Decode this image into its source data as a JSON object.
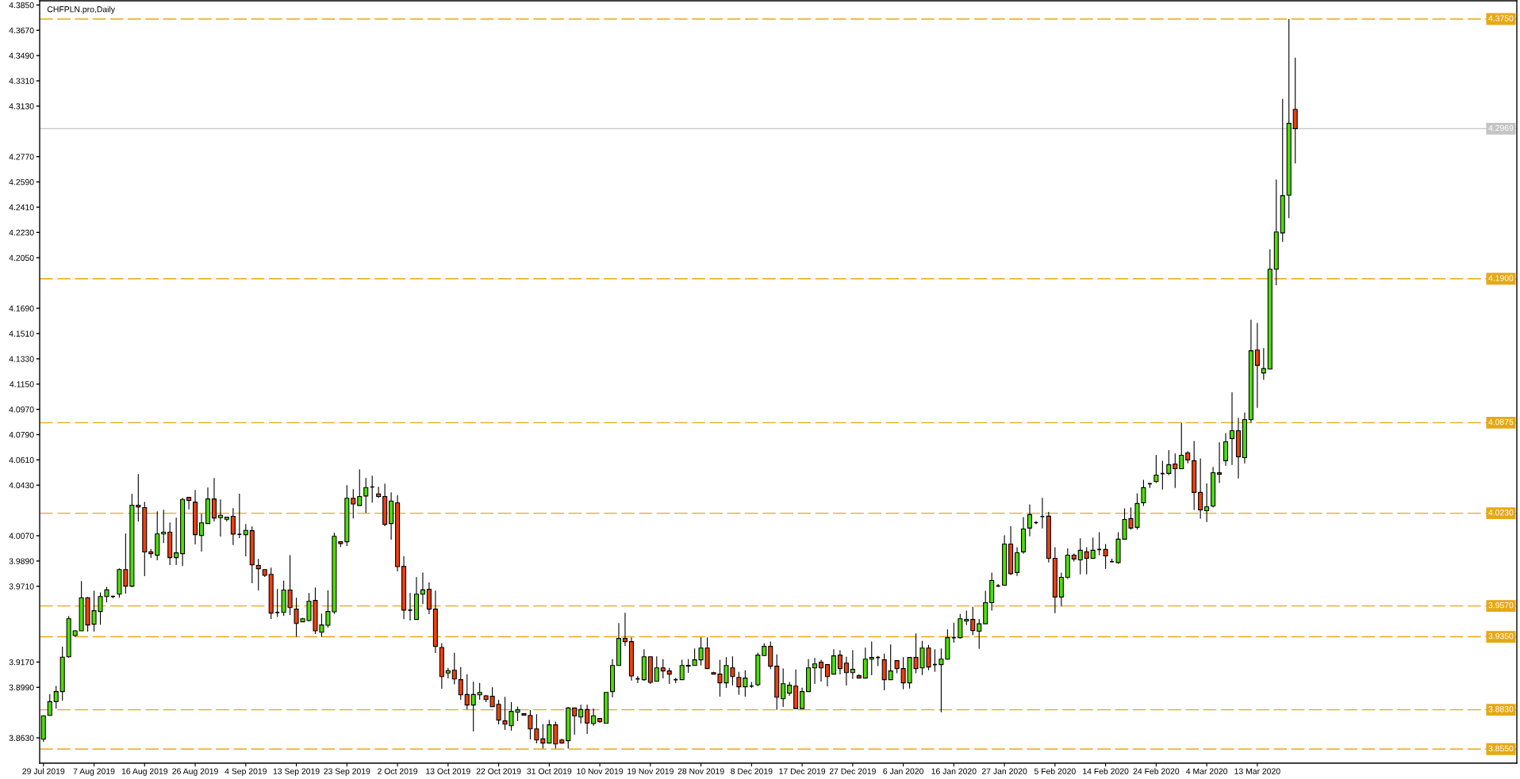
{
  "chart_data": {
    "type": "candlestick",
    "title": "CHFPLN.pro,Daily",
    "categories": [
      "29 Jul 2019",
      null,
      null,
      null,
      null,
      null,
      null,
      null,
      "7 Aug 2019",
      null,
      null,
      null,
      null,
      null,
      null,
      null,
      "16 Aug 2019",
      null,
      null,
      null,
      null,
      null,
      null,
      null,
      "26 Aug 2019",
      null,
      null,
      null,
      null,
      null,
      null,
      null,
      "4 Sep 2019",
      null,
      null,
      null,
      null,
      null,
      null,
      null,
      "13 Sep 2019",
      null,
      null,
      null,
      null,
      null,
      null,
      null,
      "23 Sep 2019",
      null,
      null,
      null,
      null,
      null,
      null,
      null,
      "2 Oct 2019",
      null,
      null,
      null,
      null,
      null,
      null,
      null,
      "13 Oct 2019",
      null,
      null,
      null,
      null,
      null,
      null,
      null,
      "22 Oct 2019",
      null,
      null,
      null,
      null,
      null,
      null,
      null,
      "31 Oct 2019",
      null,
      null,
      null,
      null,
      null,
      null,
      null,
      "10 Nov 2019",
      null,
      null,
      null,
      null,
      null,
      null,
      null,
      "19 Nov 2019",
      null,
      null,
      null,
      null,
      null,
      null,
      null,
      "28 Nov 2019",
      null,
      null,
      null,
      null,
      null,
      null,
      null,
      "8 Dec 2019",
      null,
      null,
      null,
      null,
      null,
      null,
      null,
      "17 Dec 2019",
      null,
      null,
      null,
      null,
      null,
      null,
      null,
      "27 Dec 2019",
      null,
      null,
      null,
      null,
      null,
      null,
      null,
      "6 Jan 2020",
      null,
      null,
      null,
      null,
      null,
      null,
      null,
      "16 Jan 2020",
      null,
      null,
      null,
      null,
      null,
      null,
      null,
      "27 Jan 2020",
      null,
      null,
      null,
      null,
      null,
      null,
      null,
      "5 Feb 2020",
      null,
      null,
      null,
      null,
      null,
      null,
      null,
      "14 Feb 2020",
      null,
      null,
      null,
      null,
      null,
      null,
      null,
      "24 Feb 2020",
      null,
      null,
      null,
      null,
      null,
      null,
      null,
      "4 Mar 2020",
      null,
      null,
      null,
      null,
      null,
      null,
      null,
      "13 Mar 2020",
      null,
      null,
      null,
      null,
      null,
      null
    ],
    "ohlc": [
      [
        3.8621,
        3.879,
        3.8602,
        3.8787
      ],
      [
        3.879,
        3.8941,
        3.8787,
        3.8888
      ],
      [
        3.8888,
        3.9001,
        3.8838,
        3.896
      ],
      [
        3.896,
        3.928,
        3.8894,
        3.9205
      ],
      [
        3.9208,
        3.9498,
        3.9201,
        3.9479
      ],
      [
        3.9359,
        3.9396,
        3.9351,
        3.9393
      ],
      [
        3.9393,
        3.9747,
        3.9393,
        3.9628
      ],
      [
        3.9628,
        3.9634,
        3.9387,
        3.9434
      ],
      [
        3.944,
        3.9679,
        3.9387,
        3.9536
      ],
      [
        3.953,
        3.9666,
        3.9436,
        3.9637
      ],
      [
        3.9637,
        3.9705,
        3.9596,
        3.9684
      ],
      [
        3.9637,
        3.9643,
        3.9626,
        3.9637
      ],
      [
        3.9654,
        3.9837,
        3.963,
        3.9829
      ],
      [
        3.9829,
        4.0085,
        3.9658,
        3.9711
      ],
      [
        3.9711,
        4.0368,
        3.9703,
        4.0287
      ],
      [
        4.0287,
        4.0509,
        4.017,
        4.0275
      ],
      [
        4.027,
        4.0311,
        3.9782,
        3.9954
      ],
      [
        3.9955,
        3.9976,
        3.9912,
        3.9942
      ],
      [
        3.9931,
        4.0243,
        3.9895,
        4.0083
      ],
      [
        4.0083,
        4.0255,
        4.0018,
        4.0095
      ],
      [
        4.0095,
        4.0164,
        3.9861,
        3.9914
      ],
      [
        3.9914,
        4.0198,
        3.9861,
        3.9948
      ],
      [
        3.9942,
        4.0339,
        3.9854,
        4.0328
      ],
      [
        4.0343,
        4.0343,
        4.0257,
        4.0321
      ],
      [
        4.0309,
        4.0396,
        4.0008,
        4.0078
      ],
      [
        4.0072,
        4.0226,
        3.9957,
        4.0162
      ],
      [
        4.0157,
        4.0413,
        4.0157,
        4.0332
      ],
      [
        4.0332,
        4.048,
        4.0172,
        4.0196
      ],
      [
        4.0198,
        4.0328,
        4.0065,
        4.0215
      ],
      [
        4.0187,
        4.0202,
        4.0172,
        4.0202
      ],
      [
        4.0208,
        4.0266,
        4.0003,
        4.0082
      ],
      [
        4.008,
        4.0369,
        4.0053,
        4.008
      ],
      [
        4.0078,
        4.0153,
        3.9923,
        4.0108
      ],
      [
        4.0106,
        4.0136,
        3.9731,
        3.9863
      ],
      [
        3.9858,
        3.9905,
        3.9681,
        3.9835
      ],
      [
        3.9829,
        3.9829,
        3.9777,
        3.9788
      ],
      [
        3.9795,
        3.9843,
        3.9477,
        3.9519
      ],
      [
        3.9523,
        3.969,
        3.9491,
        3.9523
      ],
      [
        3.9524,
        3.975,
        3.95,
        3.9683
      ],
      [
        3.9683,
        3.9931,
        3.9506,
        3.9558
      ],
      [
        3.9547,
        3.9628,
        3.9351,
        3.9445
      ],
      [
        3.9457,
        3.9485,
        3.9457,
        3.9479
      ],
      [
        3.9466,
        3.9662,
        3.9459,
        3.9603
      ],
      [
        3.9609,
        3.9701,
        3.937,
        3.9393
      ],
      [
        3.9383,
        3.9515,
        3.9349,
        3.9434
      ],
      [
        3.9432,
        3.9681,
        3.9415,
        3.953
      ],
      [
        3.9528,
        4.0091,
        3.9513,
        4.0066
      ],
      [
        4.0027,
        4.0027,
        3.9989,
        4.0014
      ],
      [
        4.0027,
        4.043,
        3.9997,
        4.0337
      ],
      [
        4.0337,
        4.0401,
        4.0193,
        4.0296
      ],
      [
        4.0285,
        4.0543,
        4.0285,
        4.0349
      ],
      [
        4.0353,
        4.048,
        4.0232,
        4.0413
      ],
      [
        4.0417,
        4.0497,
        4.0305,
        4.0417
      ],
      [
        4.0368,
        4.0418,
        4.0339,
        4.0349
      ],
      [
        4.0349,
        4.0441,
        4.0138,
        4.0151
      ],
      [
        4.0157,
        4.0379,
        4.0042,
        4.0317
      ],
      [
        4.0304,
        4.0358,
        3.9816,
        3.985
      ],
      [
        3.9852,
        3.9925,
        3.9476,
        3.954
      ],
      [
        3.954,
        3.9662,
        3.9466,
        3.954
      ],
      [
        3.9474,
        3.9775,
        3.9474,
        3.9654
      ],
      [
        3.9654,
        3.9807,
        3.9583,
        3.9684
      ],
      [
        3.9688,
        3.9739,
        3.9511,
        3.9547
      ],
      [
        3.9547,
        3.9679,
        3.9235,
        3.9282
      ],
      [
        3.9274,
        3.9304,
        3.8981,
        3.9067
      ],
      [
        3.9092,
        3.9129,
        3.9054,
        3.9109
      ],
      [
        3.9112,
        3.9236,
        3.9011,
        3.905
      ],
      [
        3.9045,
        3.9135,
        3.8901,
        3.8937
      ],
      [
        3.8939,
        3.9084,
        3.8832,
        3.8864
      ],
      [
        3.8864,
        3.903,
        3.8676,
        3.8939
      ],
      [
        3.8937,
        3.9022,
        3.8901,
        3.8954
      ],
      [
        3.893,
        3.8937,
        3.8885,
        3.8903
      ],
      [
        3.8926,
        3.899,
        3.8853,
        3.8853
      ],
      [
        3.8869,
        3.89,
        3.8727,
        3.8757
      ],
      [
        3.8751,
        3.8922,
        3.8687,
        3.8728
      ],
      [
        3.8717,
        3.8885,
        3.8681,
        3.8819
      ],
      [
        3.8813,
        3.8853,
        3.8749,
        3.883
      ],
      [
        3.8802,
        3.8802,
        3.8792,
        3.8792
      ],
      [
        3.879,
        3.8828,
        3.8619,
        3.8694
      ],
      [
        3.8694,
        3.8798,
        3.8591,
        3.8615
      ],
      [
        3.8623,
        3.8728,
        3.8555,
        3.8593
      ],
      [
        3.8593,
        3.8758,
        3.8593,
        3.8723
      ],
      [
        3.8723,
        3.8747,
        3.8555,
        3.8587
      ],
      [
        3.8615,
        3.8623,
        3.8593,
        3.8593
      ],
      [
        3.861,
        3.8849,
        3.8555,
        3.8843
      ],
      [
        3.8843,
        3.8843,
        3.8653,
        3.8787
      ],
      [
        3.8779,
        3.8866,
        3.8732,
        3.8832
      ],
      [
        3.8832,
        3.8866,
        3.8659,
        3.8736
      ],
      [
        3.8732,
        3.8839,
        3.8717,
        3.8787
      ],
      [
        3.8768,
        3.8768,
        3.8738,
        3.8745
      ],
      [
        3.8734,
        3.8954,
        3.8734,
        3.8954
      ],
      [
        3.896,
        3.9191,
        3.8918,
        3.9146
      ],
      [
        3.9146,
        3.9447,
        3.9146,
        3.9338
      ],
      [
        3.9338,
        3.9521,
        3.9285,
        3.9316
      ],
      [
        3.9316,
        3.9344,
        3.9039,
        3.9071
      ],
      [
        3.905,
        3.9069,
        3.902,
        3.905
      ],
      [
        3.9045,
        3.9261,
        3.9035,
        3.9208
      ],
      [
        3.9208,
        3.9208,
        3.9014,
        3.9026
      ],
      [
        3.9033,
        3.921,
        3.9033,
        3.9129
      ],
      [
        3.9129,
        3.9191,
        3.9054,
        3.9107
      ],
      [
        3.9107,
        3.9129,
        3.9014,
        3.9084
      ],
      [
        3.9045,
        3.9056,
        3.902,
        3.9045
      ],
      [
        3.9045,
        3.9186,
        3.9045,
        3.9146
      ],
      [
        3.9141,
        3.9191,
        3.9094,
        3.9146
      ],
      [
        3.9146,
        3.9267,
        3.9146,
        3.9186
      ],
      [
        3.9186,
        3.9346,
        3.9146,
        3.927
      ],
      [
        3.927,
        3.9346,
        3.9124,
        3.9124
      ],
      [
        3.9095,
        3.9101,
        3.9084,
        3.9084
      ],
      [
        3.9084,
        3.9186,
        3.8924,
        3.9022
      ],
      [
        3.9022,
        3.9205,
        3.8986,
        3.9146
      ],
      [
        3.9129,
        3.921,
        3.9003,
        3.9067
      ],
      [
        3.9061,
        3.9101,
        3.8937,
        3.8994
      ],
      [
        3.8994,
        3.9112,
        3.8924,
        3.9056
      ],
      [
        3.8999,
        3.9028,
        3.8986,
        3.8999
      ],
      [
        3.9009,
        3.9237,
        3.8997,
        3.922
      ],
      [
        3.9216,
        3.9304,
        3.9212,
        3.9282
      ],
      [
        3.9282,
        3.9317,
        3.912,
        3.9141
      ],
      [
        3.9141,
        3.9225,
        3.883,
        3.892
      ],
      [
        3.8909,
        3.9124,
        3.8851,
        3.9016
      ],
      [
        3.8949,
        3.9028,
        3.893,
        3.9005
      ],
      [
        3.8999,
        3.9118,
        3.8836,
        3.8839
      ],
      [
        3.8839,
        3.8988,
        3.8836,
        3.896
      ],
      [
        3.896,
        3.9191,
        3.896,
        3.9129
      ],
      [
        3.9129,
        3.9199,
        3.9014,
        3.9157
      ],
      [
        3.9169,
        3.9186,
        3.9031,
        3.9129
      ],
      [
        3.9152,
        3.9152,
        3.8997,
        3.9067
      ],
      [
        3.9084,
        3.9261,
        3.9084,
        3.9214
      ],
      [
        3.922,
        3.9255,
        3.9082,
        3.9124
      ],
      [
        3.9163,
        3.9208,
        3.9003,
        3.9095
      ],
      [
        3.9095,
        3.9255,
        3.905,
        3.9118
      ],
      [
        3.9073,
        3.9084,
        3.9056,
        3.9056
      ],
      [
        3.9056,
        3.9272,
        3.9056,
        3.9191
      ],
      [
        3.9191,
        3.9317,
        3.9077,
        3.9203
      ],
      [
        3.9203,
        3.9214,
        3.9141,
        3.9203
      ],
      [
        3.9186,
        3.9231,
        3.8969,
        3.9045
      ],
      [
        3.9045,
        3.9295,
        3.9045,
        3.9107
      ],
      [
        3.918,
        3.918,
        3.909,
        3.9124
      ],
      [
        3.9124,
        3.9205,
        3.8977,
        3.9022
      ],
      [
        3.9022,
        3.9203,
        3.8982,
        3.9203
      ],
      [
        3.9203,
        3.9374,
        3.909,
        3.9124
      ],
      [
        3.9129,
        3.9321,
        3.9078,
        3.927
      ],
      [
        3.927,
        3.9293,
        3.9112,
        3.9135
      ],
      [
        3.9152,
        3.9261,
        3.9101,
        3.9152
      ],
      [
        3.9152,
        3.9267,
        3.8813,
        3.9191
      ],
      [
        3.9191,
        3.9402,
        3.9186,
        3.9344
      ],
      [
        3.9344,
        3.9451,
        3.9308,
        3.9344
      ],
      [
        3.9344,
        3.9513,
        3.9338,
        3.9479
      ],
      [
        3.9462,
        3.9536,
        3.9434,
        3.9474
      ],
      [
        3.9474,
        3.9564,
        3.9361,
        3.9395
      ],
      [
        3.939,
        3.9477,
        3.9264,
        3.9443
      ],
      [
        3.9443,
        3.9678,
        3.9443,
        3.9593
      ],
      [
        3.9593,
        3.9808,
        3.9537,
        3.9751
      ],
      [
        3.9712,
        3.9725,
        3.9704,
        3.9712
      ],
      [
        3.9717,
        4.0073,
        3.9717,
        4.0011
      ],
      [
        4.0011,
        4.0137,
        3.9791,
        3.98
      ],
      [
        3.9808,
        3.9988,
        3.9783,
        3.9949
      ],
      [
        3.9955,
        4.0203,
        3.9941,
        4.0118
      ],
      [
        4.0124,
        4.0293,
        4.0066,
        4.022
      ],
      [
        4.0163,
        4.0175,
        4.0152,
        4.0163
      ],
      [
        4.0207,
        4.034,
        4.0122,
        4.0207
      ],
      [
        4.0209,
        4.0239,
        3.9879,
        3.9909
      ],
      [
        3.9909,
        3.9988,
        3.9518,
        3.9633
      ],
      [
        3.9633,
        3.9808,
        3.9565,
        3.9774
      ],
      [
        3.9774,
        3.9979,
        3.9763,
        3.9932
      ],
      [
        3.9932,
        3.9943,
        3.9887,
        3.9904
      ],
      [
        3.9898,
        4.0051,
        3.9795,
        3.9966
      ],
      [
        3.9955,
        3.9988,
        3.9795,
        3.9909
      ],
      [
        3.9909,
        4.0056,
        3.9904,
        3.9966
      ],
      [
        3.9972,
        4.0096,
        3.993,
        3.9972
      ],
      [
        3.9972,
        4.0011,
        3.9834,
        3.9926
      ],
      [
        3.9885,
        3.9906,
        3.9879,
        3.9885
      ],
      [
        3.9879,
        4.0096,
        3.987,
        4.0045
      ],
      [
        4.0045,
        4.0265,
        4.0045,
        4.0186
      ],
      [
        4.0192,
        4.0271,
        4.0113,
        4.0124
      ],
      [
        4.013,
        4.0372,
        4.0113,
        4.0299
      ],
      [
        4.0305,
        4.0468,
        4.0282,
        4.0412
      ],
      [
        4.044,
        4.0444,
        4.041,
        4.044
      ],
      [
        4.0457,
        4.0645,
        4.0446,
        4.0502
      ],
      [
        4.0512,
        4.0604,
        4.0399,
        4.0512
      ],
      [
        4.0514,
        4.0679,
        4.0502,
        4.0576
      ],
      [
        4.0581,
        4.0655,
        4.041,
        4.0547
      ],
      [
        4.0547,
        4.0875,
        4.0547,
        4.0643
      ],
      [
        4.066,
        4.0672,
        4.0585,
        4.061
      ],
      [
        4.0604,
        4.0745,
        4.0254,
        4.0378
      ],
      [
        4.0378,
        4.0621,
        4.0192,
        4.0254
      ],
      [
        4.0248,
        4.0442,
        4.0167,
        4.0276
      ],
      [
        4.0282,
        4.0559,
        4.0271,
        4.0519
      ],
      [
        4.0519,
        4.0734,
        4.0446,
        4.0508
      ],
      [
        4.0604,
        4.0801,
        4.0568,
        4.0739
      ],
      [
        4.0762,
        4.1091,
        4.0574,
        4.0818
      ],
      [
        4.0818,
        4.0909,
        4.0478,
        4.0632
      ],
      [
        4.0626,
        4.0948,
        4.0585,
        4.0897
      ],
      [
        4.0897,
        4.1608,
        4.0875,
        4.1387
      ],
      [
        4.1392,
        4.1586,
        4.098,
        4.1283
      ],
      [
        4.1229,
        4.1406,
        4.118,
        4.126
      ],
      [
        4.1257,
        4.2111,
        4.1257,
        4.1968
      ],
      [
        4.1968,
        4.2607,
        4.1853,
        4.2233
      ],
      [
        4.2227,
        4.3182,
        4.2163,
        4.2492
      ],
      [
        4.2496,
        4.375,
        4.2332,
        4.3007
      ],
      [
        4.3107,
        4.3475,
        4.2722,
        4.2969
      ]
    ],
    "colors": [
      "#4ee000",
      "#4ee000",
      "#4ee000",
      "#4ee000",
      "#4ee000",
      "#4ee000",
      "#4ee000",
      "#f0400c",
      "#4ee000",
      "#4ee000",
      "#4ee000",
      "#000000",
      "#4ee000",
      "#f0400c",
      "#4ee000",
      "#f0400c",
      "#f0400c",
      "#f0400c",
      "#4ee000",
      "#4ee000",
      "#f0400c",
      "#4ee000",
      "#4ee000",
      "#f0400c",
      "#f0400c",
      "#4ee000",
      "#4ee000",
      "#f0400c",
      "#4ee000",
      "#4ee000",
      "#f0400c",
      "#000000",
      "#4ee000",
      "#f0400c",
      "#f0400c",
      "#f0400c",
      "#f0400c",
      "#000000",
      "#4ee000",
      "#f0400c",
      "#f0400c",
      "#4ee000",
      "#4ee000",
      "#f0400c",
      "#4ee000",
      "#4ee000",
      "#4ee000",
      "#f0400c",
      "#4ee000",
      "#f0400c",
      "#4ee000",
      "#4ee000",
      "#000000",
      "#f0400c",
      "#f0400c",
      "#4ee000",
      "#f0400c",
      "#f0400c",
      "#000000",
      "#4ee000",
      "#4ee000",
      "#f0400c",
      "#f0400c",
      "#f0400c",
      "#4ee000",
      "#f0400c",
      "#f0400c",
      "#f0400c",
      "#4ee000",
      "#4ee000",
      "#f0400c",
      "#f0400c",
      "#f0400c",
      "#f0400c",
      "#4ee000",
      "#4ee000",
      "#f0400c",
      "#f0400c",
      "#f0400c",
      "#f0400c",
      "#4ee000",
      "#f0400c",
      "#f0400c",
      "#4ee000",
      "#f0400c",
      "#4ee000",
      "#f0400c",
      "#4ee000",
      "#f0400c",
      "#4ee000",
      "#4ee000",
      "#4ee000",
      "#f0400c",
      "#f0400c",
      "#000000",
      "#4ee000",
      "#f0400c",
      "#4ee000",
      "#f0400c",
      "#f0400c",
      "#000000",
      "#4ee000",
      "#4ee000",
      "#4ee000",
      "#4ee000",
      "#f0400c",
      "#f0400c",
      "#f0400c",
      "#4ee000",
      "#f0400c",
      "#f0400c",
      "#4ee000",
      "#000000",
      "#4ee000",
      "#4ee000",
      "#f0400c",
      "#f0400c",
      "#4ee000",
      "#4ee000",
      "#f0400c",
      "#4ee000",
      "#4ee000",
      "#4ee000",
      "#f0400c",
      "#f0400c",
      "#4ee000",
      "#f0400c",
      "#f0400c",
      "#4ee000",
      "#f0400c",
      "#4ee000",
      "#4ee000",
      "#000000",
      "#f0400c",
      "#4ee000",
      "#f0400c",
      "#f0400c",
      "#4ee000",
      "#f0400c",
      "#4ee000",
      "#f0400c",
      "#000000",
      "#4ee000",
      "#4ee000",
      "#000000",
      "#4ee000",
      "#4ee000",
      "#f0400c",
      "#4ee000",
      "#4ee000",
      "#4ee000",
      "#000000",
      "#4ee000",
      "#f0400c",
      "#4ee000",
      "#4ee000",
      "#4ee000",
      "#000000",
      "#000000",
      "#f0400c",
      "#f0400c",
      "#4ee000",
      "#4ee000",
      "#f0400c",
      "#4ee000",
      "#f0400c",
      "#4ee000",
      "#000000",
      "#f0400c",
      "#000000",
      "#4ee000",
      "#4ee000",
      "#f0400c",
      "#4ee000",
      "#4ee000",
      "#000000",
      "#4ee000",
      "#000000",
      "#4ee000",
      "#f0400c",
      "#4ee000",
      "#f0400c",
      "#f0400c",
      "#f0400c",
      "#4ee000",
      "#4ee000",
      "#f0400c",
      "#4ee000",
      "#4ee000",
      "#f0400c",
      "#4ee000",
      "#4ee000",
      "#f0400c",
      "#4ee000",
      "#4ee000",
      "#4ee000",
      "#4ee000",
      "#4ee000",
      "#f0400c"
    ],
    "ylim": [
      3.845,
      4.388
    ],
    "yticks": [
      {
        "value": 4.385,
        "label": "4.3850"
      },
      {
        "value": 4.367,
        "label": "4.3670"
      },
      {
        "value": 4.349,
        "label": "4.3490"
      },
      {
        "value": 4.331,
        "label": "4.3310"
      },
      {
        "value": 4.313,
        "label": "4.3130"
      },
      {
        "value": 4.277,
        "label": "4.2770"
      },
      {
        "value": 4.259,
        "label": "4.2590"
      },
      {
        "value": 4.241,
        "label": "4.2410"
      },
      {
        "value": 4.223,
        "label": "4.2230"
      },
      {
        "value": 4.205,
        "label": "4.2050"
      },
      {
        "value": 4.169,
        "label": "4.1690"
      },
      {
        "value": 4.151,
        "label": "4.1510"
      },
      {
        "value": 4.133,
        "label": "4.1330"
      },
      {
        "value": 4.115,
        "label": "4.1150"
      },
      {
        "value": 4.097,
        "label": "4.0970"
      },
      {
        "value": 4.079,
        "label": "4.0790"
      },
      {
        "value": 4.061,
        "label": "4.0610"
      },
      {
        "value": 4.043,
        "label": "4.0430"
      },
      {
        "value": 4.007,
        "label": "4.0070"
      },
      {
        "value": 3.989,
        "label": "3.9890"
      },
      {
        "value": 3.971,
        "label": "3.9710"
      },
      {
        "value": 3.917,
        "label": "3.9170"
      },
      {
        "value": 3.899,
        "label": "3.8990"
      },
      {
        "value": 3.863,
        "label": "3.8630"
      }
    ],
    "ref_lines": [
      {
        "axis": "y",
        "value": 4.375,
        "label": "4.3750",
        "color": "#e6a817",
        "line_style": "dashed"
      },
      {
        "axis": "y",
        "value": 4.2969,
        "label": "4.2969",
        "color": "#c4c4c4",
        "line_style": "solid"
      },
      {
        "axis": "y",
        "value": 4.19,
        "label": "4.1900",
        "color": "#e6a817",
        "line_style": "dashed"
      },
      {
        "axis": "y",
        "value": 4.0875,
        "label": "4.0875",
        "color": "#e6a817",
        "line_style": "dashed"
      },
      {
        "axis": "y",
        "value": 4.023,
        "label": "4.0230",
        "color": "#e6a817",
        "line_style": "dashed"
      },
      {
        "axis": "y",
        "value": 3.957,
        "label": "3.9570",
        "color": "#e6a817",
        "line_style": "dashed"
      },
      {
        "axis": "y",
        "value": 3.935,
        "label": "3.9350",
        "color": "#e6a817",
        "line_style": "dashed"
      },
      {
        "axis": "y",
        "value": 3.883,
        "label": "3.8830",
        "color": "#e6a817",
        "line_style": "dashed"
      },
      {
        "axis": "y",
        "value": 3.855,
        "label": "3.8550",
        "color": "#e6a817",
        "line_style": "dashed"
      }
    ]
  }
}
